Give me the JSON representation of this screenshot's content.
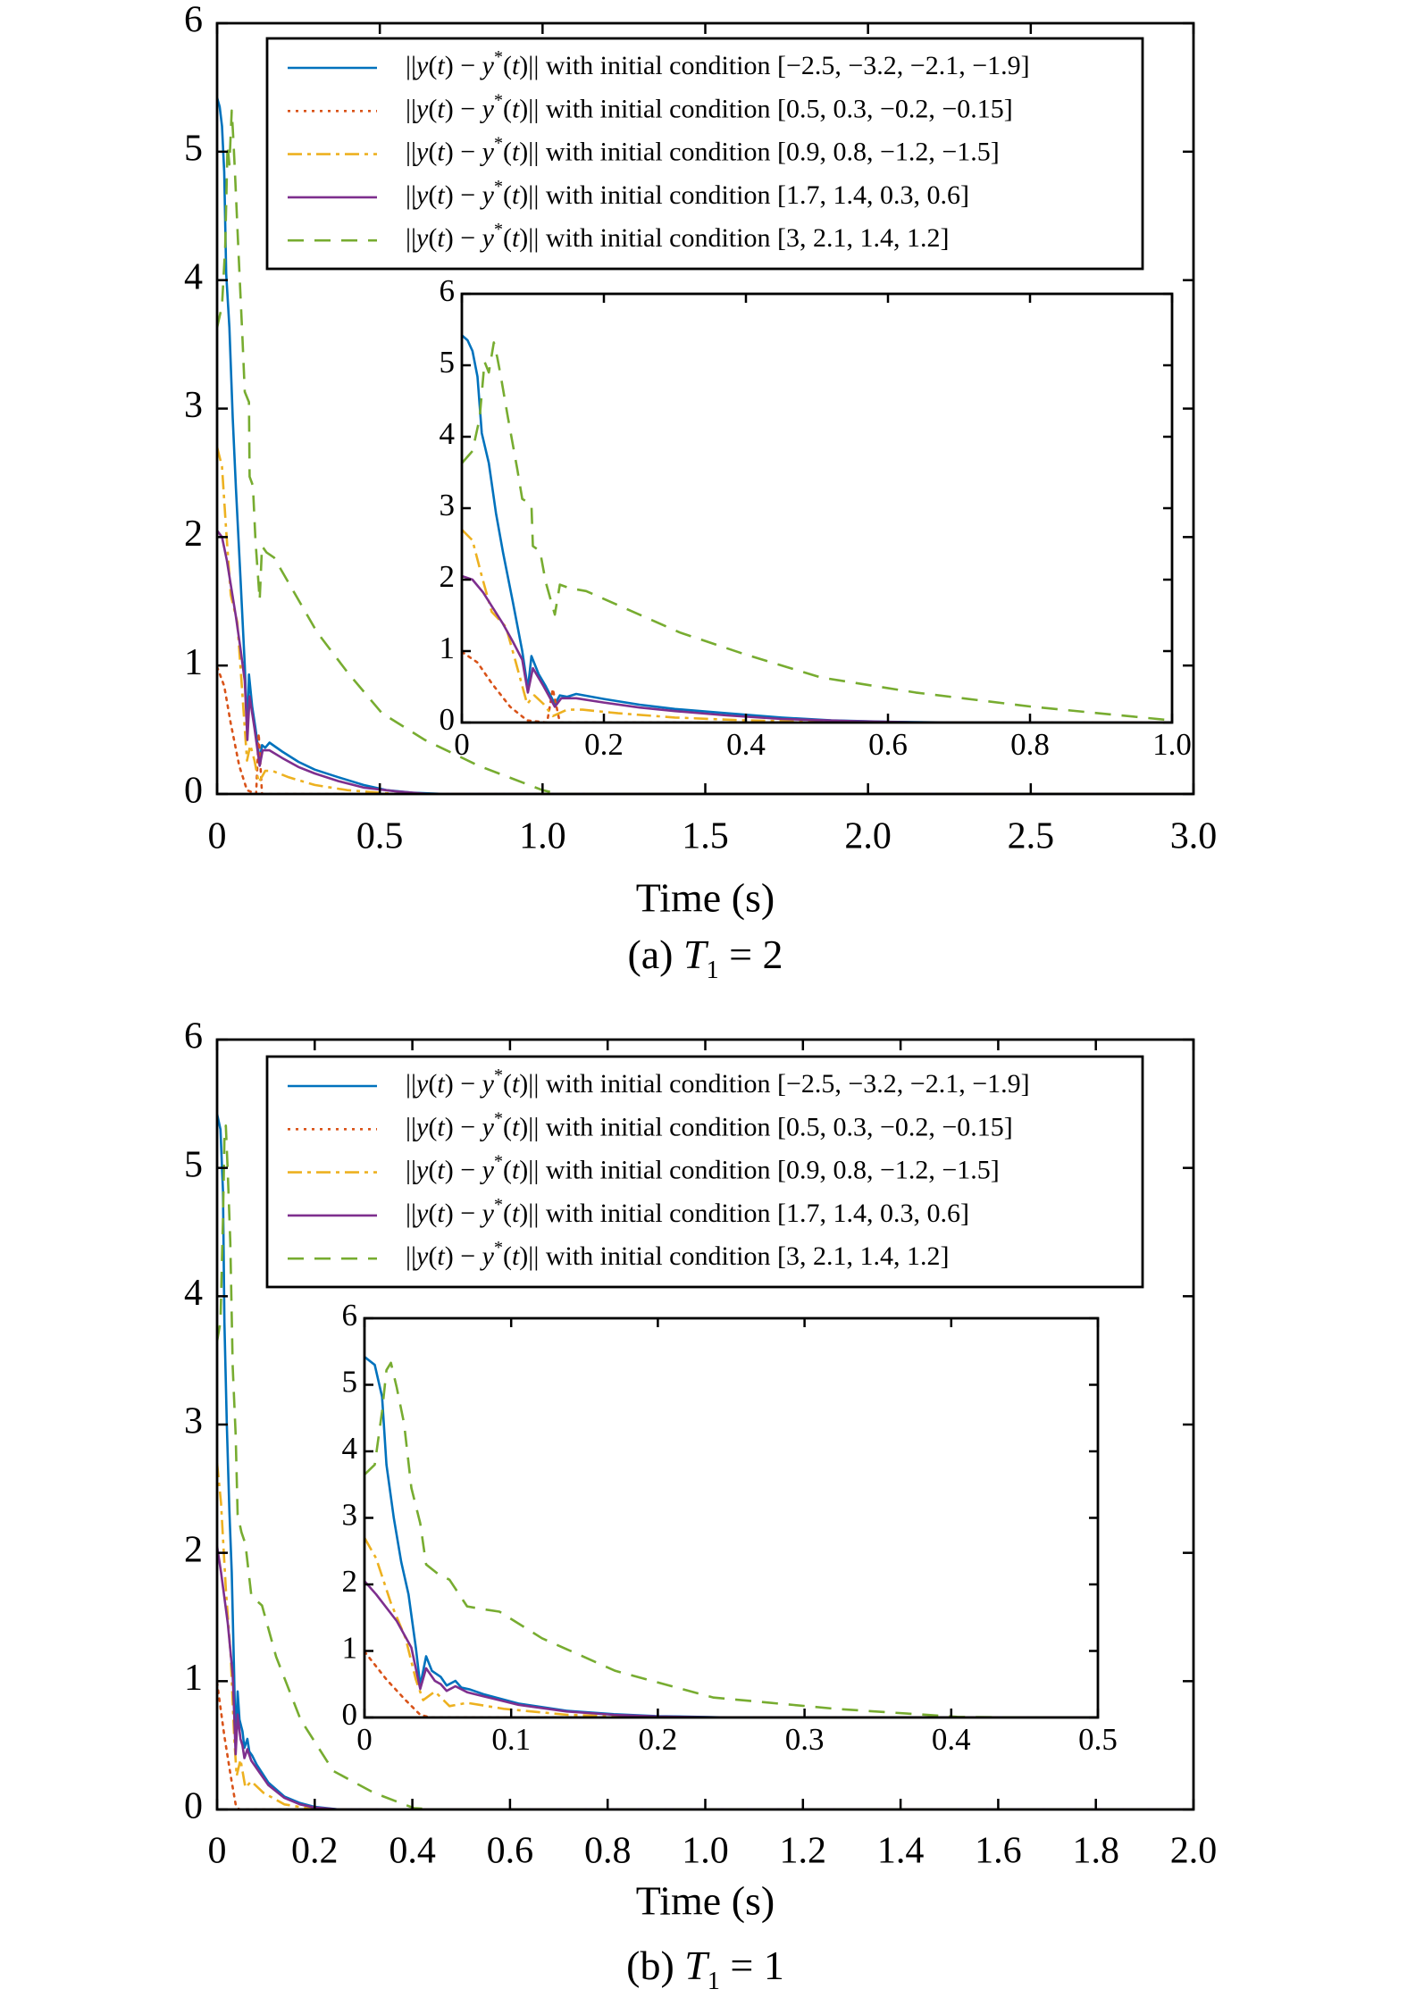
{
  "chart_data": [
    {
      "type": "line",
      "caption": {
        "label": "(a)",
        "symbol": "T",
        "subscript": "1",
        "value": "= 2"
      },
      "xlabel": "Time (s)",
      "ylabel": "",
      "xlim": [
        0,
        3.0
      ],
      "ylim": [
        0,
        6
      ],
      "xticks": [
        "0",
        "0.5",
        "1.0",
        "1.5",
        "2.0",
        "2.5",
        "3.0"
      ],
      "yticks": [
        "0",
        "1",
        "2",
        "3",
        "4",
        "5",
        "6"
      ],
      "grid": false,
      "legend_placement": "top-right",
      "inset": {
        "xlim": [
          0,
          1.0
        ],
        "ylim": [
          0,
          6
        ],
        "xticks": [
          "0",
          "0.2",
          "0.4",
          "0.6",
          "0.8",
          "1.0"
        ],
        "yticks": [
          "0",
          "1",
          "2",
          "3",
          "4",
          "5",
          "6"
        ]
      },
      "series": [
        {
          "name": "||y(t) − y*(t)|| with initial condition [−2.5, −3.2, −2.1, −1.9]",
          "color": "#0072BD",
          "style": "solid",
          "points": [
            [
              0,
              5.42
            ],
            [
              0.008,
              5.35
            ],
            [
              0.015,
              5.2
            ],
            [
              0.022,
              4.84
            ],
            [
              0.028,
              4.05
            ],
            [
              0.038,
              3.63
            ],
            [
              0.048,
              2.93
            ],
            [
              0.058,
              2.38
            ],
            [
              0.072,
              1.68
            ],
            [
              0.085,
              1.0
            ],
            [
              0.093,
              0.47
            ],
            [
              0.098,
              0.93
            ],
            [
              0.108,
              0.68
            ],
            [
              0.118,
              0.51
            ],
            [
              0.131,
              0.26
            ],
            [
              0.138,
              0.38
            ],
            [
              0.148,
              0.36
            ],
            [
              0.161,
              0.4
            ],
            [
              0.2,
              0.33
            ],
            [
              0.25,
              0.25
            ],
            [
              0.3,
              0.19
            ],
            [
              0.373,
              0.13
            ],
            [
              0.45,
              0.07
            ],
            [
              0.52,
              0.03
            ],
            [
              0.6,
              0.01
            ],
            [
              0.7,
              0
            ],
            [
              3.0,
              0
            ]
          ]
        },
        {
          "name": "||y(t) − y*(t)|| with initial condition [0.5, 0.3, −0.2, −0.15]",
          "color": "#D95319",
          "style": "dotted",
          "points": [
            [
              0,
              0.99
            ],
            [
              0.022,
              0.84
            ],
            [
              0.042,
              0.55
            ],
            [
              0.068,
              0.22
            ],
            [
              0.092,
              0.03
            ],
            [
              0.12,
              0
            ],
            [
              0.128,
              0.47
            ],
            [
              0.138,
              0
            ],
            [
              3.0,
              0
            ]
          ]
        },
        {
          "name": "||y(t) − y*(t)|| with initial condition [0.9, 0.8, −1.2, −1.5]",
          "color": "#EDB120",
          "style": "dashdot",
          "points": [
            [
              0,
              2.7
            ],
            [
              0.015,
              2.55
            ],
            [
              0.028,
              2.05
            ],
            [
              0.042,
              1.55
            ],
            [
              0.062,
              1.34
            ],
            [
              0.075,
              0.88
            ],
            [
              0.092,
              0.26
            ],
            [
              0.102,
              0.38
            ],
            [
              0.115,
              0.26
            ],
            [
              0.128,
              0.09
            ],
            [
              0.148,
              0.18
            ],
            [
              0.17,
              0.18
            ],
            [
              0.22,
              0.13
            ],
            [
              0.3,
              0.07
            ],
            [
              0.4,
              0.03
            ],
            [
              0.5,
              0.01
            ],
            [
              0.55,
              0
            ],
            [
              3.0,
              0
            ]
          ]
        },
        {
          "name": "||y(t) − y*(t)|| with initial condition [1.7, 1.4, 0.3, 0.6]",
          "color": "#7E2F8E",
          "style": "solid",
          "points": [
            [
              0,
              2.05
            ],
            [
              0.015,
              2.0
            ],
            [
              0.03,
              1.82
            ],
            [
              0.042,
              1.63
            ],
            [
              0.058,
              1.38
            ],
            [
              0.072,
              1.13
            ],
            [
              0.085,
              0.88
            ],
            [
              0.093,
              0.42
            ],
            [
              0.1,
              0.76
            ],
            [
              0.115,
              0.51
            ],
            [
              0.131,
              0.22
            ],
            [
              0.14,
              0.34
            ],
            [
              0.161,
              0.34
            ],
            [
              0.2,
              0.28
            ],
            [
              0.25,
              0.21
            ],
            [
              0.3,
              0.16
            ],
            [
              0.373,
              0.1
            ],
            [
              0.45,
              0.05
            ],
            [
              0.55,
              0.02
            ],
            [
              0.65,
              0
            ],
            [
              3.0,
              0
            ]
          ]
        },
        {
          "name": "||y(t) − y*(t)|| with initial condition [3, 2.1, 1.4, 1.2]",
          "color": "#77AC30",
          "style": "dashed",
          "points": [
            [
              0,
              3.63
            ],
            [
              0.015,
              3.8
            ],
            [
              0.025,
              4.26
            ],
            [
              0.032,
              5.05
            ],
            [
              0.038,
              4.9
            ],
            [
              0.045,
              5.32
            ],
            [
              0.05,
              5.1
            ],
            [
              0.055,
              4.84
            ],
            [
              0.065,
              4.26
            ],
            [
              0.078,
              3.55
            ],
            [
              0.085,
              3.13
            ],
            [
              0.098,
              3.05
            ],
            [
              0.1,
              2.47
            ],
            [
              0.11,
              2.4
            ],
            [
              0.118,
              1.97
            ],
            [
              0.131,
              1.51
            ],
            [
              0.138,
              1.93
            ],
            [
              0.152,
              1.88
            ],
            [
              0.175,
              1.84
            ],
            [
              0.307,
              1.26
            ],
            [
              0.4,
              0.95
            ],
            [
              0.506,
              0.63
            ],
            [
              0.639,
              0.42
            ],
            [
              0.804,
              0.22
            ],
            [
              1.0,
              0.03
            ],
            [
              1.05,
              0
            ],
            [
              3.0,
              0
            ]
          ]
        }
      ]
    },
    {
      "type": "line",
      "caption": {
        "label": "(b)",
        "symbol": "T",
        "subscript": "1",
        "value": "= 1"
      },
      "xlabel": "Time (s)",
      "ylabel": "",
      "xlim": [
        0,
        2.0
      ],
      "ylim": [
        0,
        6
      ],
      "xticks": [
        "0",
        "0.2",
        "0.4",
        "0.6",
        "0.8",
        "1.0",
        "1.2",
        "1.4",
        "1.6",
        "1.8",
        "2.0"
      ],
      "yticks": [
        "0",
        "1",
        "2",
        "3",
        "4",
        "5",
        "6"
      ],
      "grid": false,
      "legend_placement": "top-right",
      "inset": {
        "xlim": [
          0,
          0.5
        ],
        "ylim": [
          0,
          6
        ],
        "xticks": [
          "0",
          "0.1",
          "0.2",
          "0.3",
          "0.4",
          "0.5"
        ],
        "yticks": [
          "0",
          "1",
          "2",
          "3",
          "4",
          "5",
          "6"
        ]
      },
      "series": [
        {
          "name": "||y(t) − y*(t)|| with initial condition [−2.5, −3.2, −2.1, −1.9]",
          "color": "#0072BD",
          "style": "solid",
          "points": [
            [
              0,
              5.42
            ],
            [
              0.007,
              5.3
            ],
            [
              0.012,
              4.82
            ],
            [
              0.015,
              3.8
            ],
            [
              0.02,
              3.0
            ],
            [
              0.025,
              2.34
            ],
            [
              0.03,
              1.85
            ],
            [
              0.035,
              1.05
            ],
            [
              0.038,
              0.48
            ],
            [
              0.042,
              0.92
            ],
            [
              0.046,
              0.7
            ],
            [
              0.052,
              0.61
            ],
            [
              0.056,
              0.48
            ],
            [
              0.062,
              0.55
            ],
            [
              0.066,
              0.45
            ],
            [
              0.072,
              0.42
            ],
            [
              0.081,
              0.35
            ],
            [
              0.105,
              0.21
            ],
            [
              0.138,
              0.1
            ],
            [
              0.17,
              0.05
            ],
            [
              0.2,
              0.02
            ],
            [
              0.25,
              0
            ],
            [
              2.0,
              0
            ]
          ]
        },
        {
          "name": "||y(t) − y*(t)|| with initial condition [0.5, 0.3, −0.2, −0.15]",
          "color": "#D95319",
          "style": "dotted",
          "points": [
            [
              0,
              0.99
            ],
            [
              0.015,
              0.57
            ],
            [
              0.028,
              0.26
            ],
            [
              0.038,
              0.04
            ],
            [
              0.045,
              0
            ],
            [
              2.0,
              0
            ]
          ]
        },
        {
          "name": "||y(t) − y*(t)|| with initial condition [0.9, 0.8, −1.2, −1.5]",
          "color": "#EDB120",
          "style": "dashdot",
          "points": [
            [
              0,
              2.7
            ],
            [
              0.008,
              2.39
            ],
            [
              0.018,
              1.72
            ],
            [
              0.028,
              1.19
            ],
            [
              0.035,
              0.57
            ],
            [
              0.04,
              0.26
            ],
            [
              0.048,
              0.39
            ],
            [
              0.058,
              0.17
            ],
            [
              0.07,
              0.22
            ],
            [
              0.095,
              0.13
            ],
            [
              0.138,
              0.04
            ],
            [
              0.2,
              0
            ],
            [
              2.0,
              0
            ]
          ]
        },
        {
          "name": "||y(t) − y*(t)|| with initial condition [1.7, 1.4, 0.3, 0.6]",
          "color": "#7E2F8E",
          "style": "solid",
          "points": [
            [
              0,
              2.05
            ],
            [
              0.008,
              1.85
            ],
            [
              0.022,
              1.45
            ],
            [
              0.032,
              1.05
            ],
            [
              0.038,
              0.43
            ],
            [
              0.042,
              0.74
            ],
            [
              0.048,
              0.55
            ],
            [
              0.052,
              0.5
            ],
            [
              0.056,
              0.4
            ],
            [
              0.062,
              0.47
            ],
            [
              0.07,
              0.38
            ],
            [
              0.081,
              0.32
            ],
            [
              0.105,
              0.19
            ],
            [
              0.138,
              0.09
            ],
            [
              0.17,
              0.04
            ],
            [
              0.2,
              0.015
            ],
            [
              0.25,
              0
            ],
            [
              2.0,
              0
            ]
          ]
        },
        {
          "name": "||y(t) − y*(t)|| with initial condition [3, 2.1, 1.4, 1.2]",
          "color": "#77AC30",
          "style": "dashed",
          "points": [
            [
              0,
              3.65
            ],
            [
              0.007,
              3.8
            ],
            [
              0.012,
              4.6
            ],
            [
              0.015,
              5.22
            ],
            [
              0.018,
              5.33
            ],
            [
              0.022,
              4.96
            ],
            [
              0.027,
              4.42
            ],
            [
              0.032,
              3.45
            ],
            [
              0.038,
              2.92
            ],
            [
              0.042,
              2.3
            ],
            [
              0.05,
              2.16
            ],
            [
              0.058,
              2.07
            ],
            [
              0.07,
              1.67
            ],
            [
              0.08,
              1.63
            ],
            [
              0.092,
              1.59
            ],
            [
              0.121,
              1.19
            ],
            [
              0.171,
              0.7
            ],
            [
              0.238,
              0.3
            ],
            [
              0.321,
              0.13
            ],
            [
              0.404,
              0.01
            ],
            [
              0.45,
              0
            ],
            [
              2.0,
              0
            ]
          ]
        }
      ]
    }
  ]
}
